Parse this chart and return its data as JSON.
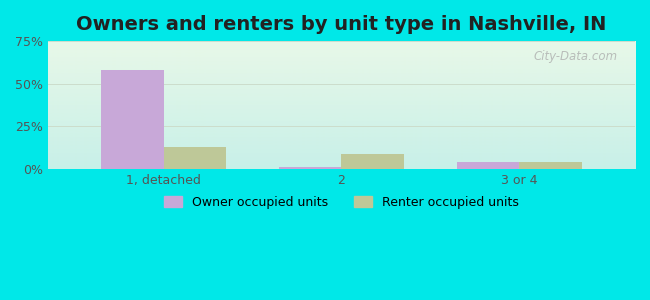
{
  "title": "Owners and renters by unit type in Nashville, IN",
  "categories": [
    "1, detached",
    "2",
    "3 or 4"
  ],
  "owner_values": [
    58.0,
    1.0,
    4.0
  ],
  "renter_values": [
    13.0,
    9.0,
    4.0
  ],
  "owner_color": "#c8a8d8",
  "renter_color": "#bec898",
  "background_top": "#e8f8e8",
  "background_bottom": "#c8f0e8",
  "outer_bg": "#00e8e8",
  "ylim": [
    0,
    75
  ],
  "yticks": [
    0,
    25,
    50,
    75
  ],
  "ytick_labels": [
    "0%",
    "25%",
    "50%",
    "75%"
  ],
  "bar_width": 0.35,
  "watermark": "City-Data.com",
  "title_fontsize": 14,
  "legend_labels": [
    "Owner occupied units",
    "Renter occupied units"
  ]
}
